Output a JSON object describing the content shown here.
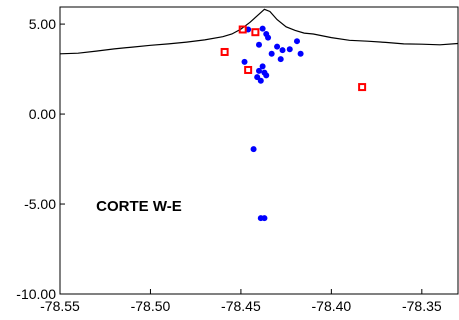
{
  "chart_data": {
    "type": "scatter",
    "title": "",
    "xlabel": "",
    "ylabel": "",
    "xlim": [
      -78.55,
      -78.33
    ],
    "ylim": [
      -10.0,
      5.95
    ],
    "grid": false,
    "x_ticks": [
      {
        "value": -78.55,
        "label": "-78.55"
      },
      {
        "value": -78.5,
        "label": "-78.50"
      },
      {
        "value": -78.45,
        "label": "-78.45"
      },
      {
        "value": -78.4,
        "label": "-78.40"
      },
      {
        "value": -78.35,
        "label": "-78.35"
      }
    ],
    "y_ticks": [
      {
        "value": 5.0,
        "label": "5.00"
      },
      {
        "value": 0.0,
        "label": "0.00"
      },
      {
        "value": -5.0,
        "label": "-5.00"
      },
      {
        "value": -10.0,
        "label": "-10.00"
      }
    ],
    "annotations": [
      {
        "text": "CORTE W-E",
        "x": -78.53,
        "y": -5.4
      }
    ],
    "series": [
      {
        "kind": "line",
        "color": "#000000",
        "x": [
          -78.55,
          -78.54,
          -78.53,
          -78.52,
          -78.51,
          -78.5,
          -78.49,
          -78.48,
          -78.47,
          -78.46,
          -78.455,
          -78.45,
          -78.445,
          -78.44,
          -78.437,
          -78.434,
          -78.43,
          -78.425,
          -78.42,
          -78.415,
          -78.41,
          -78.4,
          -78.39,
          -78.38,
          -78.37,
          -78.36,
          -78.35,
          -78.34,
          -78.33
        ],
        "y": [
          3.35,
          3.38,
          3.5,
          3.62,
          3.72,
          3.82,
          3.9,
          4.0,
          4.12,
          4.3,
          4.45,
          4.72,
          5.1,
          5.55,
          5.82,
          5.7,
          5.25,
          4.85,
          4.65,
          4.5,
          4.45,
          4.25,
          4.1,
          4.05,
          3.98,
          3.9,
          3.88,
          3.85,
          3.92
        ]
      },
      {
        "kind": "points",
        "marker": "circle",
        "color": "#0000ff",
        "points": [
          [
            -78.446,
            4.7
          ],
          [
            -78.438,
            4.75
          ],
          [
            -78.436,
            4.45
          ],
          [
            -78.435,
            4.25
          ],
          [
            -78.44,
            3.85
          ],
          [
            -78.43,
            3.75
          ],
          [
            -78.433,
            3.35
          ],
          [
            -78.428,
            3.05
          ],
          [
            -78.427,
            3.55
          ],
          [
            -78.423,
            3.6
          ],
          [
            -78.419,
            4.05
          ],
          [
            -78.417,
            3.35
          ],
          [
            -78.448,
            2.9
          ],
          [
            -78.438,
            2.65
          ],
          [
            -78.44,
            2.4
          ],
          [
            -78.437,
            2.3
          ],
          [
            -78.436,
            2.15
          ],
          [
            -78.441,
            2.05
          ],
          [
            -78.439,
            1.85
          ],
          [
            -78.443,
            -1.95
          ],
          [
            -78.439,
            -5.78
          ],
          [
            -78.437,
            -5.78
          ]
        ]
      },
      {
        "kind": "points",
        "marker": "square",
        "color": "#ff0000",
        "points": [
          [
            -78.449,
            4.7
          ],
          [
            -78.442,
            4.55
          ],
          [
            -78.459,
            3.45
          ],
          [
            -78.446,
            2.45
          ],
          [
            -78.383,
            1.5
          ]
        ]
      }
    ]
  }
}
